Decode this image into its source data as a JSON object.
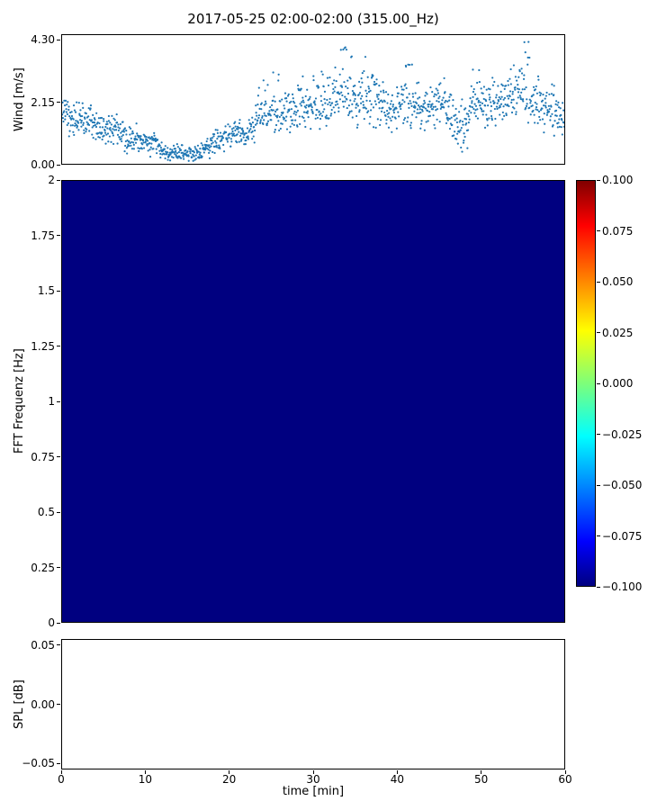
{
  "figure": {
    "title": "2017-05-25 02:00-02:00 (315.00_Hz)"
  },
  "chart_data": [
    {
      "type": "scatter",
      "title": "2017-05-25 02:00-02:00 (315.00_Hz)",
      "ylabel": "Wind [m/s]",
      "xlabel": "",
      "xlim": [
        0,
        60
      ],
      "ylim": [
        0,
        4.5
      ],
      "yticks": [
        0,
        2.15,
        4.3
      ],
      "ytick_labels": [
        "0.00",
        "2.15",
        "4.30"
      ],
      "marker_color": "#1f77b4",
      "grid": false,
      "series": [
        {
          "name": "wind_speed",
          "x_minutes": [
            0,
            1,
            2,
            3,
            4,
            5,
            6,
            7,
            8,
            9,
            10,
            11,
            12,
            13,
            14,
            15,
            16,
            17,
            18,
            19,
            20,
            21,
            22,
            23,
            24,
            25,
            26,
            27,
            28,
            29,
            30,
            31,
            32,
            33,
            34,
            35,
            36,
            37,
            38,
            39,
            40,
            41,
            42,
            43,
            44,
            45,
            46,
            47,
            48,
            49,
            50,
            51,
            52,
            53,
            54,
            55,
            56,
            57,
            58,
            59,
            60
          ],
          "mean": [
            1.8,
            1.6,
            1.5,
            1.6,
            1.3,
            1.2,
            1.3,
            1.1,
            0.9,
            1.0,
            0.8,
            0.7,
            0.45,
            0.35,
            0.4,
            0.35,
            0.3,
            0.5,
            0.7,
            0.9,
            1.0,
            1.2,
            1.1,
            1.4,
            1.7,
            1.9,
            1.7,
            1.8,
            1.9,
            2.0,
            2.1,
            2.0,
            2.3,
            2.6,
            2.4,
            2.0,
            2.2,
            2.3,
            2.1,
            1.8,
            1.9,
            2.2,
            2.1,
            1.9,
            2.0,
            2.2,
            2.0,
            1.4,
            1.1,
            1.9,
            2.1,
            2.2,
            2.1,
            2.3,
            2.5,
            2.6,
            2.1,
            2.0,
            1.9,
            1.8,
            1.6
          ],
          "spread": [
            0.45,
            0.45,
            0.45,
            0.45,
            0.4,
            0.4,
            0.4,
            0.4,
            0.4,
            0.4,
            0.35,
            0.35,
            0.2,
            0.2,
            0.2,
            0.2,
            0.2,
            0.25,
            0.3,
            0.35,
            0.35,
            0.35,
            0.35,
            0.5,
            0.55,
            0.55,
            0.5,
            0.5,
            0.5,
            0.55,
            0.6,
            0.6,
            0.65,
            0.65,
            0.65,
            0.6,
            0.65,
            0.65,
            0.6,
            0.55,
            0.55,
            0.6,
            0.6,
            0.55,
            0.55,
            0.6,
            0.6,
            0.7,
            0.7,
            0.6,
            0.6,
            0.6,
            0.6,
            0.65,
            0.65,
            0.7,
            0.6,
            0.6,
            0.55,
            0.55,
            0.5
          ],
          "burst": [
            0,
            0,
            0,
            0,
            0,
            0,
            0,
            0,
            0,
            0,
            0,
            0,
            0,
            0,
            0,
            0,
            0,
            0,
            0,
            0,
            0,
            0,
            0,
            2.9,
            3.0,
            3.2,
            0,
            0,
            3.1,
            0,
            3.4,
            3.3,
            3.6,
            4.1,
            3.8,
            0,
            3.9,
            3.6,
            0,
            0,
            0,
            3.5,
            0,
            0,
            0,
            3.3,
            0,
            0,
            0,
            3.4,
            0,
            0,
            0,
            3.6,
            3.5,
            4.3,
            3.3,
            0,
            3.0,
            0,
            0
          ]
        }
      ]
    },
    {
      "type": "heatmap",
      "ylabel": "FFT Frequenz [Hz]",
      "xlim": [
        0,
        60
      ],
      "ylim": [
        0,
        2
      ],
      "yticks": [
        0,
        0.25,
        0.5,
        0.75,
        1,
        1.25,
        1.5,
        1.75,
        2
      ],
      "ytick_labels": [
        "0",
        "0.25",
        "0.5",
        "0.75",
        "1",
        "1.25",
        "1.5",
        "1.75",
        "2"
      ],
      "uniform_value": -0.1,
      "fill_color": "#000080",
      "colorbar": {
        "colormap": "jet",
        "vmin": -0.1,
        "vmax": 0.1,
        "ticks": [
          0.1,
          0.075,
          0.05,
          0.025,
          0,
          -0.025,
          -0.05,
          -0.075,
          -0.1
        ],
        "tick_labels": [
          "0.100",
          "0.075",
          "0.050",
          "0.025",
          "0.000",
          "−0.025",
          "−0.050",
          "−0.075",
          "−0.100"
        ],
        "gradient": [
          {
            "color": "#000080",
            "pos": 0
          },
          {
            "color": "#0000ff",
            "pos": 11
          },
          {
            "color": "#00ffff",
            "pos": 37
          },
          {
            "color": "#7dff7a",
            "pos": 50
          },
          {
            "color": "#ffff00",
            "pos": 63
          },
          {
            "color": "#ff0000",
            "pos": 89
          },
          {
            "color": "#800000",
            "pos": 100
          }
        ]
      }
    },
    {
      "type": "line",
      "ylabel": "SPL [dB]",
      "xlabel": "time [min]",
      "xlim": [
        0,
        60
      ],
      "ylim": [
        -0.055,
        0.055
      ],
      "yticks": [
        0.05,
        0,
        -0.05
      ],
      "ytick_labels": [
        "0.05",
        "0.00",
        "−0.05"
      ],
      "xticks": [
        0,
        10,
        20,
        30,
        40,
        50,
        60
      ],
      "xtick_labels": [
        "0",
        "10",
        "20",
        "30",
        "40",
        "50",
        "60"
      ],
      "values": []
    }
  ]
}
